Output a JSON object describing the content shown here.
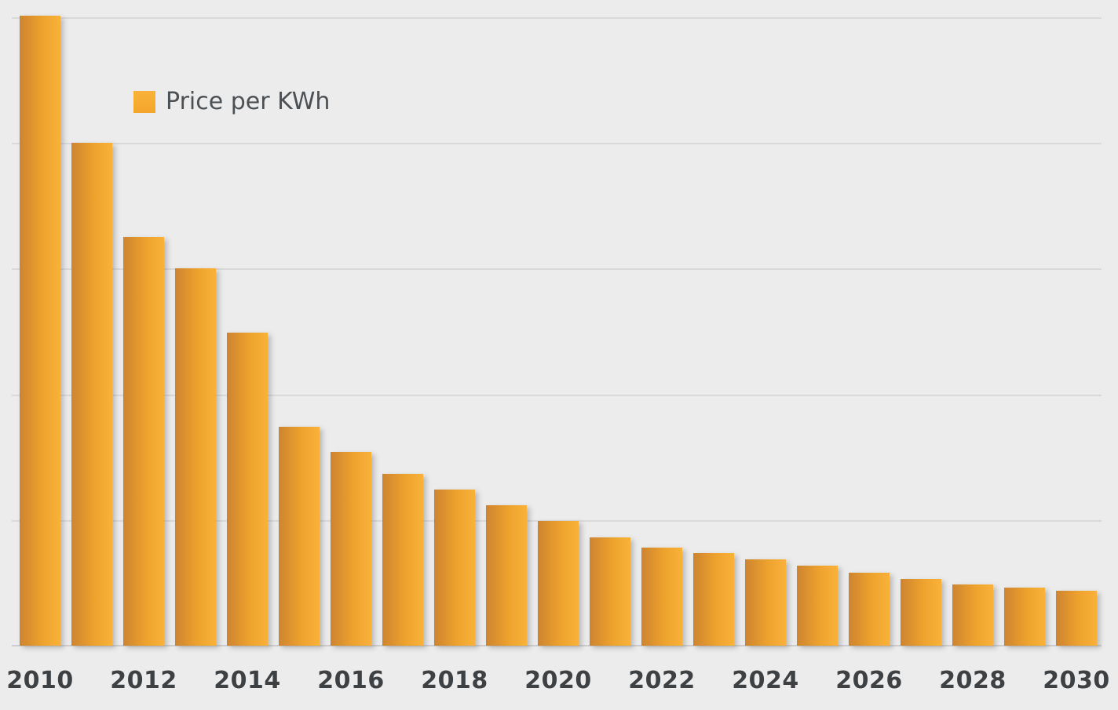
{
  "legend": {
    "label": "Price per KWh"
  },
  "chart_data": {
    "type": "bar",
    "title": "",
    "xlabel": "",
    "ylabel": "",
    "categories": [
      "2010",
      "2011",
      "2012",
      "2013",
      "2014",
      "2015",
      "2016",
      "2017",
      "2018",
      "2019",
      "2020",
      "2021",
      "2022",
      "2023",
      "2024",
      "2025",
      "2026",
      "2027",
      "2028",
      "2029",
      "2030"
    ],
    "series": [
      {
        "name": "Price per KWh",
        "values": [
          5.01,
          4.0,
          3.25,
          3.0,
          2.49,
          1.74,
          1.54,
          1.37,
          1.24,
          1.12,
          0.99,
          0.86,
          0.78,
          0.74,
          0.69,
          0.64,
          0.58,
          0.53,
          0.49,
          0.46,
          0.44
        ]
      }
    ],
    "x_tick_labels": [
      "2010",
      "2012",
      "2014",
      "2016",
      "2018",
      "2020",
      "2022",
      "2024",
      "2026",
      "2028",
      "2030"
    ],
    "ylim": [
      0,
      5
    ],
    "y_tick_labels_visible": false,
    "values_unit_note": "y-axis has no visible labels; values are in gridline units (1 unit = one horizontal gridline interval)",
    "gridlines": "horizontal, 5 intervals, plus top line and baseline",
    "legend_position": "inside-top-left"
  },
  "colors": {
    "background": "#ececec",
    "gridline": "#d9d9d9",
    "axis_line": "#cdcdcd",
    "bar_gradient_left": "#ce8430",
    "bar_gradient_mid": "#eda22d",
    "bar_gradient_right": "#f9b239",
    "legend_swatch": "#f4a62b",
    "tick_label_text": "#3e4144",
    "legend_text": "#4b5055"
  }
}
